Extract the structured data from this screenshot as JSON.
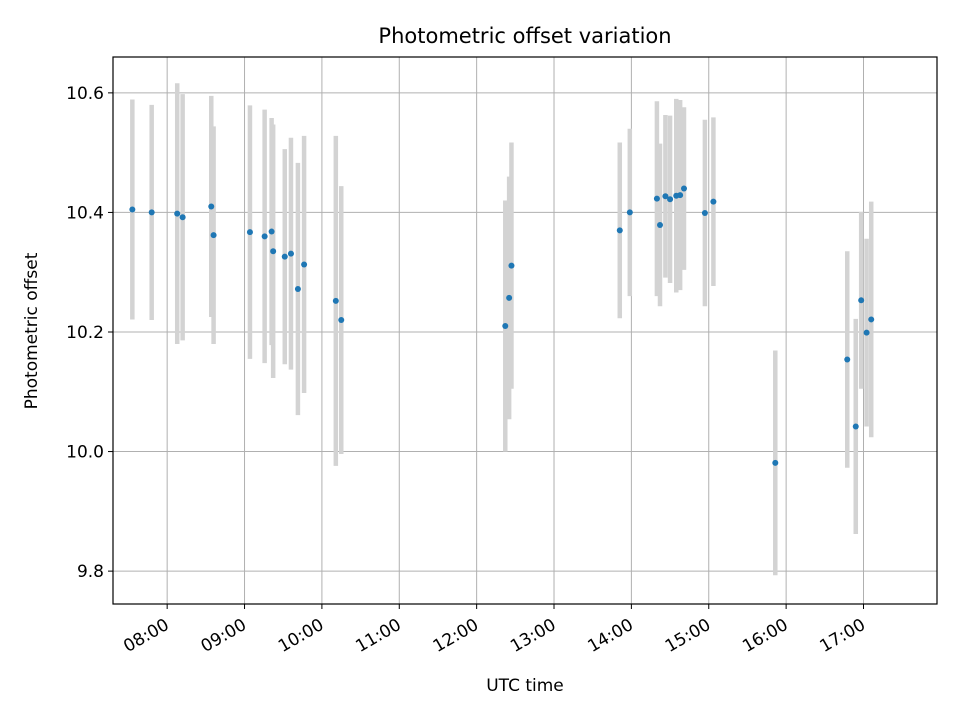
{
  "chart_data": {
    "type": "scatter",
    "title": "Photometric offset variation",
    "xlabel": "UTC time",
    "ylabel": "Photometric offset",
    "grid": true,
    "xlim": [
      7.3,
      17.95
    ],
    "ylim": [
      9.745,
      10.66
    ],
    "x_ticks": [
      {
        "value": 8,
        "label": "08:00"
      },
      {
        "value": 9,
        "label": "09:00"
      },
      {
        "value": 10,
        "label": "10:00"
      },
      {
        "value": 11,
        "label": "11:00"
      },
      {
        "value": 12,
        "label": "12:00"
      },
      {
        "value": 13,
        "label": "13:00"
      },
      {
        "value": 14,
        "label": "14:00"
      },
      {
        "value": 15,
        "label": "15:00"
      },
      {
        "value": 16,
        "label": "16:00"
      },
      {
        "value": 17,
        "label": "17:00"
      }
    ],
    "y_ticks": [
      {
        "value": 9.8,
        "label": "9.8"
      },
      {
        "value": 10.0,
        "label": "10.0"
      },
      {
        "value": 10.2,
        "label": "10.2"
      },
      {
        "value": 10.4,
        "label": "10.4"
      },
      {
        "value": 10.6,
        "label": "10.6"
      }
    ],
    "point_color": "#1f77b4",
    "errorbar_color": "#d3d3d3",
    "points": [
      {
        "x": 7.55,
        "y": 10.405,
        "err": 0.184
      },
      {
        "x": 7.8,
        "y": 10.4,
        "err": 0.18
      },
      {
        "x": 8.13,
        "y": 10.398,
        "err": 0.218
      },
      {
        "x": 8.2,
        "y": 10.392,
        "err": 0.206
      },
      {
        "x": 8.57,
        "y": 10.41,
        "err": 0.185
      },
      {
        "x": 8.6,
        "y": 10.362,
        "err": 0.182
      },
      {
        "x": 9.07,
        "y": 10.367,
        "err": 0.212
      },
      {
        "x": 9.26,
        "y": 10.36,
        "err": 0.212
      },
      {
        "x": 9.35,
        "y": 10.368,
        "err": 0.19
      },
      {
        "x": 9.37,
        "y": 10.335,
        "err": 0.212
      },
      {
        "x": 9.52,
        "y": 10.326,
        "err": 0.18
      },
      {
        "x": 9.6,
        "y": 10.331,
        "err": 0.194
      },
      {
        "x": 9.69,
        "y": 10.272,
        "err": 0.211
      },
      {
        "x": 9.77,
        "y": 10.313,
        "err": 0.215
      },
      {
        "x": 10.18,
        "y": 10.252,
        "err": 0.276
      },
      {
        "x": 10.25,
        "y": 10.22,
        "err": 0.224
      },
      {
        "x": 12.37,
        "y": 10.21,
        "err": 0.21
      },
      {
        "x": 12.42,
        "y": 10.257,
        "err": 0.203
      },
      {
        "x": 12.45,
        "y": 10.311,
        "err": 0.206
      },
      {
        "x": 13.85,
        "y": 10.37,
        "err": 0.147
      },
      {
        "x": 13.98,
        "y": 10.4,
        "err": 0.14
      },
      {
        "x": 14.33,
        "y": 10.423,
        "err": 0.163
      },
      {
        "x": 14.37,
        "y": 10.379,
        "err": 0.136
      },
      {
        "x": 14.44,
        "y": 10.427,
        "err": 0.136
      },
      {
        "x": 14.5,
        "y": 10.422,
        "err": 0.14
      },
      {
        "x": 14.58,
        "y": 10.428,
        "err": 0.162
      },
      {
        "x": 14.63,
        "y": 10.429,
        "err": 0.159
      },
      {
        "x": 14.68,
        "y": 10.44,
        "err": 0.136
      },
      {
        "x": 14.95,
        "y": 10.399,
        "err": 0.156
      },
      {
        "x": 15.06,
        "y": 10.418,
        "err": 0.141
      },
      {
        "x": 15.86,
        "y": 9.981,
        "err": 0.188
      },
      {
        "x": 16.79,
        "y": 10.154,
        "err": 0.181
      },
      {
        "x": 16.9,
        "y": 10.042,
        "err": 0.18
      },
      {
        "x": 16.97,
        "y": 10.253,
        "err": 0.148
      },
      {
        "x": 17.04,
        "y": 10.199,
        "err": 0.157
      },
      {
        "x": 17.1,
        "y": 10.221,
        "err": 0.197
      }
    ]
  }
}
